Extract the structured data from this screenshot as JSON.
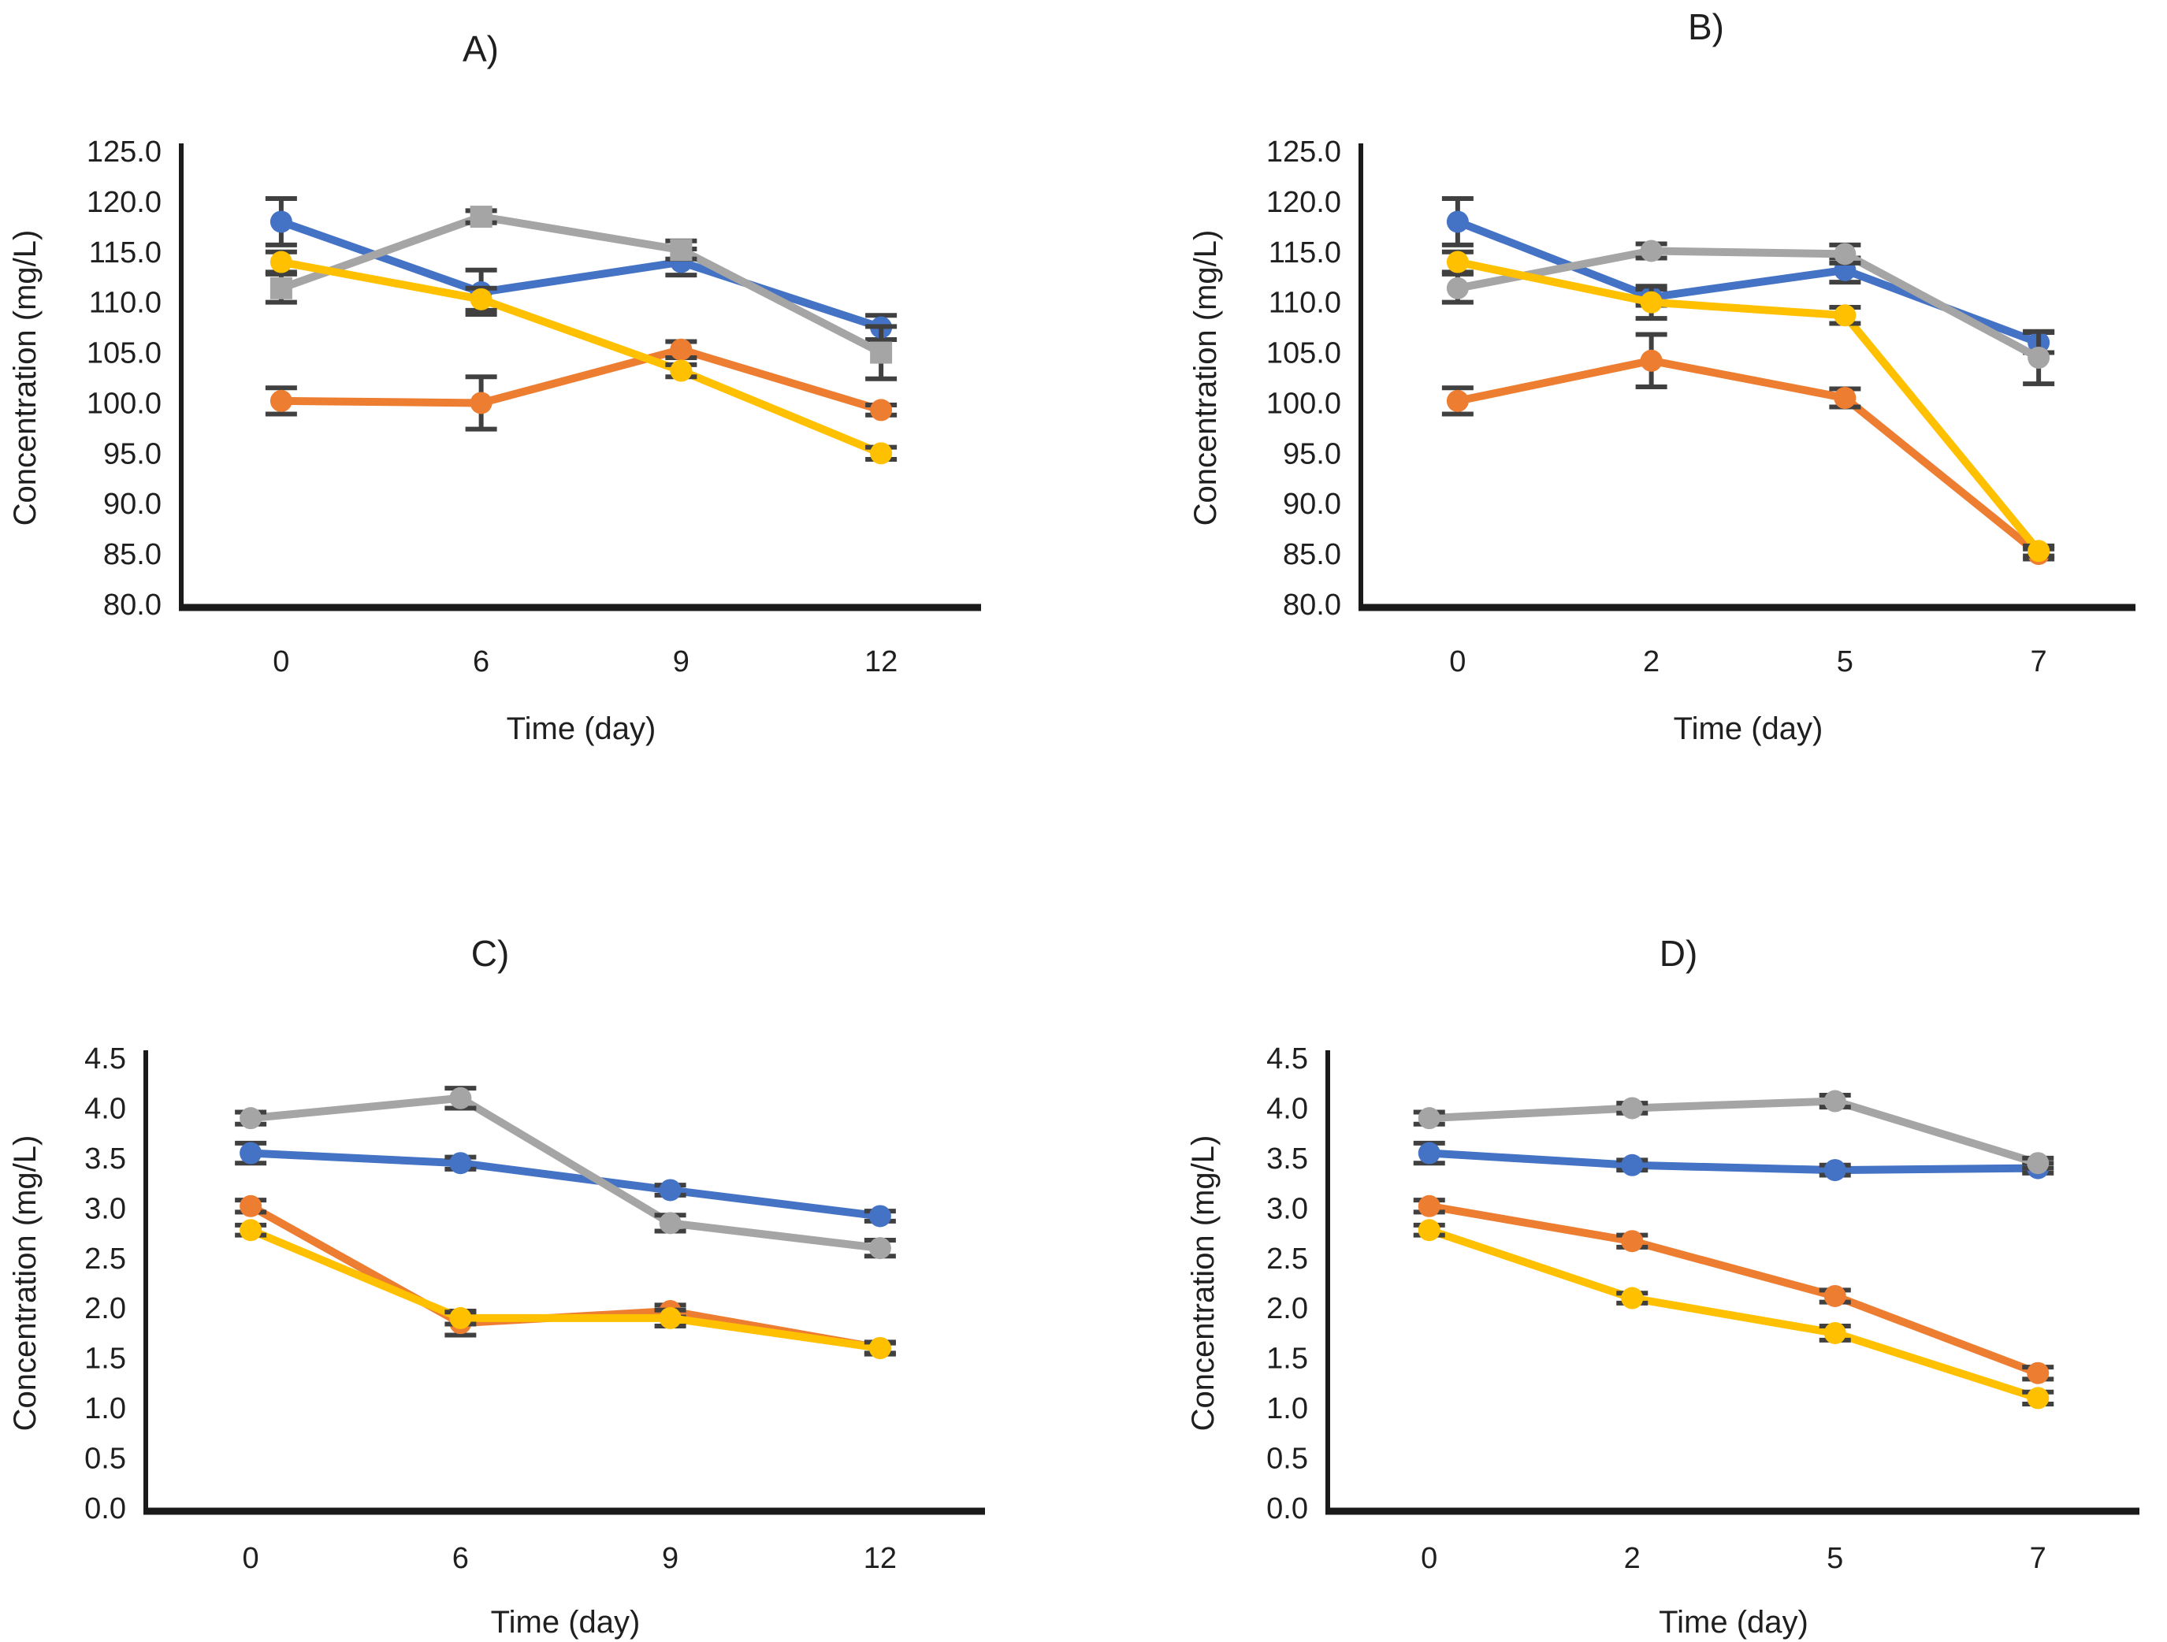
{
  "figure": {
    "background": "#ffffff",
    "text_color": "#1f1f1f",
    "axis_color": "#1a1a1a",
    "error_bar_color": "#404040"
  },
  "chart_data": [
    {
      "id": "A",
      "type": "line",
      "title": "A)",
      "xlabel": "Time (day)",
      "ylabel": "Concentration (mg/L)",
      "x_categories": [
        "0",
        "6",
        "9",
        "12"
      ],
      "ylim": [
        80,
        125
      ],
      "ytick_step": 5,
      "ytick_decimals": 1,
      "grid": false,
      "legend": "none",
      "series": [
        {
          "name": "blue",
          "color": "#4472C4",
          "marker": "circle",
          "values": [
            118.0,
            111.0,
            114.0,
            107.5
          ],
          "errors": [
            2.3,
            2.2,
            1.3,
            1.2
          ]
        },
        {
          "name": "orange",
          "color": "#ED7D31",
          "marker": "circle",
          "values": [
            100.2,
            100.0,
            105.3,
            99.3
          ],
          "errors": [
            1.3,
            2.6,
            0.8,
            0.5
          ]
        },
        {
          "name": "gray",
          "color": "#A5A5A5",
          "marker": "square",
          "values": [
            111.4,
            118.5,
            115.2,
            105.0
          ],
          "errors": [
            1.4,
            0.6,
            0.9,
            2.6
          ]
        },
        {
          "name": "yellow",
          "color": "#FFC000",
          "marker": "circle",
          "values": [
            114.0,
            110.3,
            103.2,
            95.0
          ],
          "errors": [
            1.0,
            1.1,
            0.6,
            0.6
          ]
        }
      ]
    },
    {
      "id": "B",
      "type": "line",
      "title": "B)",
      "xlabel": "Time (day)",
      "ylabel": "Concentration (mg/L)",
      "x_categories": [
        "0",
        "2",
        "5",
        "7"
      ],
      "ylim": [
        80,
        125
      ],
      "ytick_step": 5,
      "ytick_decimals": 1,
      "grid": false,
      "legend": "none",
      "series": [
        {
          "name": "blue",
          "color": "#4472C4",
          "marker": "circle",
          "values": [
            118.0,
            110.5,
            113.2,
            106.0
          ],
          "errors": [
            2.3,
            0.8,
            1.2,
            1.0
          ]
        },
        {
          "name": "orange",
          "color": "#ED7D31",
          "marker": "circle",
          "values": [
            100.2,
            104.2,
            100.5,
            85.0
          ],
          "errors": [
            1.3,
            2.6,
            0.9,
            0.5
          ]
        },
        {
          "name": "gray",
          "color": "#A5A5A5",
          "marker": "circle",
          "values": [
            111.4,
            115.1,
            114.8,
            104.5
          ],
          "errors": [
            1.4,
            0.7,
            0.9,
            2.6
          ]
        },
        {
          "name": "yellow",
          "color": "#FFC000",
          "marker": "circle",
          "values": [
            114.0,
            110.0,
            108.7,
            85.3
          ],
          "errors": [
            1.0,
            1.6,
            0.8,
            0.5
          ]
        }
      ]
    },
    {
      "id": "C",
      "type": "line",
      "title": "C)",
      "xlabel": "Time (day)",
      "ylabel": "Concentration (mg/L)",
      "x_categories": [
        "0",
        "6",
        "9",
        "12"
      ],
      "ylim": [
        0,
        4.5
      ],
      "ytick_step": 0.5,
      "ytick_decimals": 1,
      "grid": false,
      "legend": "none",
      "series": [
        {
          "name": "blue",
          "color": "#4472C4",
          "marker": "circle",
          "values": [
            3.55,
            3.45,
            3.18,
            2.92
          ],
          "errors": [
            0.1,
            0.06,
            0.05,
            0.05
          ]
        },
        {
          "name": "orange",
          "color": "#ED7D31",
          "marker": "circle",
          "values": [
            3.02,
            1.85,
            1.97,
            1.6
          ],
          "errors": [
            0.06,
            0.12,
            0.06,
            0.05
          ]
        },
        {
          "name": "gray",
          "color": "#A5A5A5",
          "marker": "circle",
          "values": [
            3.9,
            4.1,
            2.85,
            2.6
          ],
          "errors": [
            0.06,
            0.1,
            0.08,
            0.08
          ]
        },
        {
          "name": "yellow",
          "color": "#FFC000",
          "marker": "circle",
          "values": [
            2.78,
            1.9,
            1.9,
            1.6
          ],
          "errors": [
            0.05,
            0.06,
            0.08,
            0.06
          ]
        }
      ]
    },
    {
      "id": "D",
      "type": "line",
      "title": "D)",
      "xlabel": "Time (day)",
      "ylabel": "Concentration (mg/L)",
      "x_categories": [
        "0",
        "2",
        "5",
        "7"
      ],
      "ylim": [
        0,
        4.5
      ],
      "ytick_step": 0.5,
      "ytick_decimals": 1,
      "grid": false,
      "legend": "none",
      "series": [
        {
          "name": "blue",
          "color": "#4472C4",
          "marker": "circle",
          "values": [
            3.55,
            3.43,
            3.38,
            3.4
          ],
          "errors": [
            0.1,
            0.05,
            0.05,
            0.05
          ]
        },
        {
          "name": "orange",
          "color": "#ED7D31",
          "marker": "circle",
          "values": [
            3.02,
            2.67,
            2.12,
            1.35
          ],
          "errors": [
            0.06,
            0.06,
            0.06,
            0.06
          ]
        },
        {
          "name": "gray",
          "color": "#A5A5A5",
          "marker": "circle",
          "values": [
            3.9,
            4.0,
            4.07,
            3.45
          ],
          "errors": [
            0.06,
            0.05,
            0.06,
            0.05
          ]
        },
        {
          "name": "yellow",
          "color": "#FFC000",
          "marker": "circle",
          "values": [
            2.78,
            2.1,
            1.75,
            1.1
          ],
          "errors": [
            0.05,
            0.05,
            0.07,
            0.06
          ]
        }
      ]
    }
  ]
}
